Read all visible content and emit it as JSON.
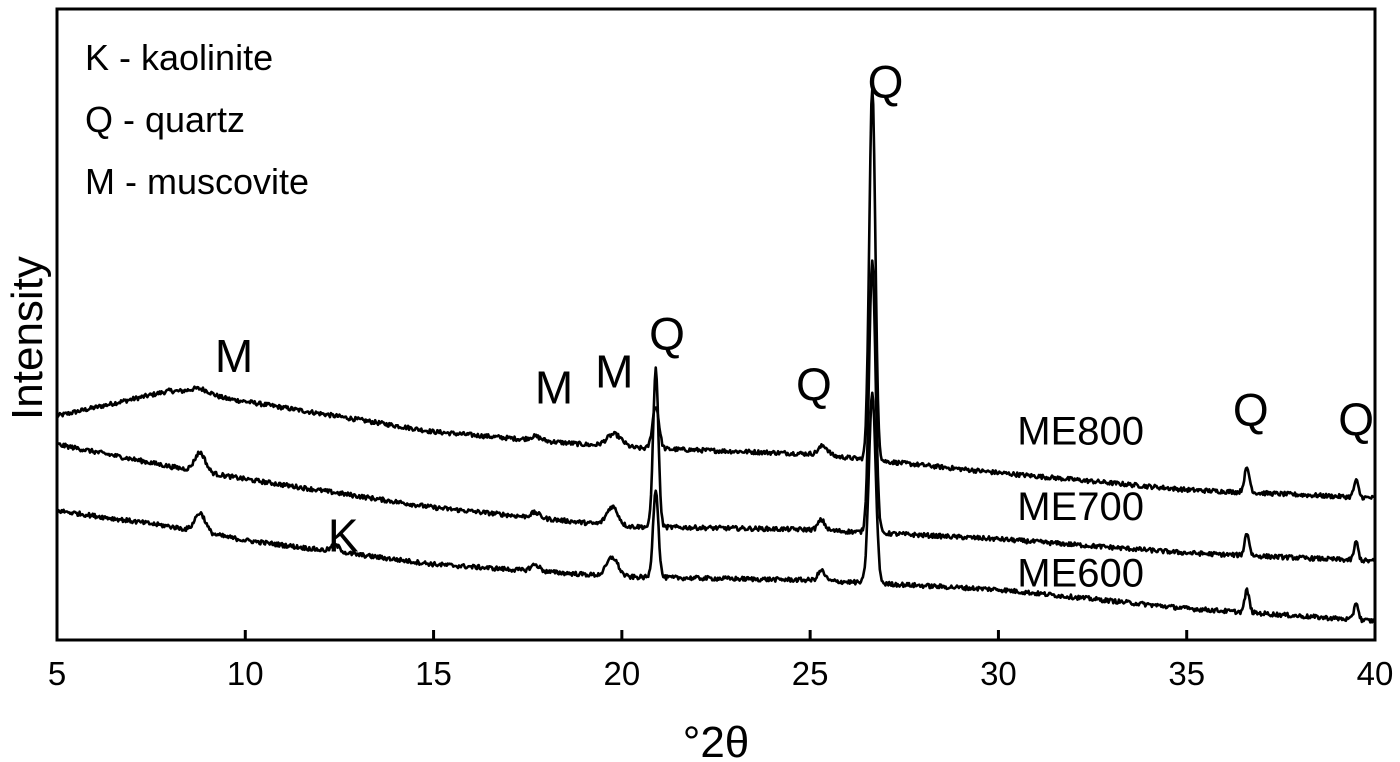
{
  "chart_data": {
    "type": "line",
    "title": "",
    "xlabel": "°2θ",
    "ylabel": "Intensity",
    "xlim": [
      5,
      40
    ],
    "x_ticks": [
      "5",
      "10",
      "15",
      "20",
      "25",
      "30",
      "35",
      "40"
    ],
    "y_ticks": [],
    "grid": false,
    "legend_position": "top-left",
    "legend": [
      "K - kaolinite",
      "Q - quartz",
      "M - muscovite"
    ],
    "series": [
      {
        "name": "ME800",
        "baseline": [
          [
            5,
            0.355
          ],
          [
            8,
            0.395
          ],
          [
            10,
            0.378
          ],
          [
            15,
            0.33
          ],
          [
            20,
            0.305
          ],
          [
            25,
            0.295
          ],
          [
            30,
            0.265
          ],
          [
            35,
            0.238
          ],
          [
            40,
            0.225
          ]
        ],
        "peaks": [
          {
            "pos": 8.8,
            "height": 0.01,
            "width": 0.28
          },
          {
            "pos": 17.7,
            "height": 0.006,
            "width": 0.15
          },
          {
            "pos": 19.8,
            "height": 0.02,
            "width": 0.2
          },
          {
            "pos": 20.9,
            "height": 0.068,
            "width": 0.085
          },
          {
            "pos": 25.35,
            "height": 0.015,
            "width": 0.12
          },
          {
            "pos": 26.65,
            "height": 0.59,
            "width": 0.08
          },
          {
            "pos": 36.6,
            "height": 0.038,
            "width": 0.07
          },
          {
            "pos": 39.5,
            "height": 0.026,
            "width": 0.06
          }
        ]
      },
      {
        "name": "ME700",
        "baseline": [
          [
            5,
            0.31
          ],
          [
            8,
            0.275
          ],
          [
            10,
            0.255
          ],
          [
            15,
            0.21
          ],
          [
            20,
            0.18
          ],
          [
            25,
            0.175
          ],
          [
            30,
            0.16
          ],
          [
            35,
            0.138
          ],
          [
            40,
            0.125
          ]
        ],
        "peaks": [
          {
            "pos": 8.8,
            "height": 0.03,
            "width": 0.14
          },
          {
            "pos": 17.7,
            "height": 0.008,
            "width": 0.12
          },
          {
            "pos": 19.75,
            "height": 0.03,
            "width": 0.15
          },
          {
            "pos": 20.9,
            "height": 0.25,
            "width": 0.07
          },
          {
            "pos": 25.3,
            "height": 0.016,
            "width": 0.09
          },
          {
            "pos": 26.65,
            "height": 0.43,
            "width": 0.085
          },
          {
            "pos": 36.6,
            "height": 0.036,
            "width": 0.06
          },
          {
            "pos": 39.5,
            "height": 0.029,
            "width": 0.055
          }
        ]
      },
      {
        "name": "ME600",
        "baseline": [
          [
            5,
            0.205
          ],
          [
            8,
            0.18
          ],
          [
            10,
            0.158
          ],
          [
            15,
            0.12
          ],
          [
            20,
            0.1
          ],
          [
            25,
            0.095
          ],
          [
            30,
            0.08
          ],
          [
            35,
            0.05
          ],
          [
            40,
            0.03
          ]
        ],
        "peaks": [
          {
            "pos": 8.8,
            "height": 0.03,
            "width": 0.14
          },
          {
            "pos": 12.4,
            "height": 0.01,
            "width": 0.12
          },
          {
            "pos": 17.7,
            "height": 0.01,
            "width": 0.12
          },
          {
            "pos": 19.75,
            "height": 0.03,
            "width": 0.15
          },
          {
            "pos": 20.9,
            "height": 0.14,
            "width": 0.07
          },
          {
            "pos": 25.3,
            "height": 0.016,
            "width": 0.09
          },
          {
            "pos": 26.65,
            "height": 0.3,
            "width": 0.09
          },
          {
            "pos": 36.6,
            "height": 0.035,
            "width": 0.06
          },
          {
            "pos": 39.5,
            "height": 0.028,
            "width": 0.055
          }
        ]
      }
    ],
    "series_labels": [
      {
        "text": "ME800",
        "x": 30.5,
        "y": 0.31
      },
      {
        "text": "ME700",
        "x": 30.5,
        "y": 0.19
      },
      {
        "text": "ME600",
        "x": 30.5,
        "y": 0.085
      }
    ],
    "annotations": [
      {
        "text": "M",
        "x": 9.7,
        "y": 0.425
      },
      {
        "text": "M",
        "x": 18.2,
        "y": 0.375
      },
      {
        "text": "M",
        "x": 19.8,
        "y": 0.4
      },
      {
        "text": "Q",
        "x": 21.2,
        "y": 0.46
      },
      {
        "text": "Q",
        "x": 25.1,
        "y": 0.38
      },
      {
        "text": "Q",
        "x": 27.0,
        "y": 0.86
      },
      {
        "text": "K",
        "x": 12.6,
        "y": 0.14
      },
      {
        "text": "Q",
        "x": 36.7,
        "y": 0.34
      },
      {
        "text": "Q",
        "x": 39.5,
        "y": 0.325
      }
    ]
  }
}
